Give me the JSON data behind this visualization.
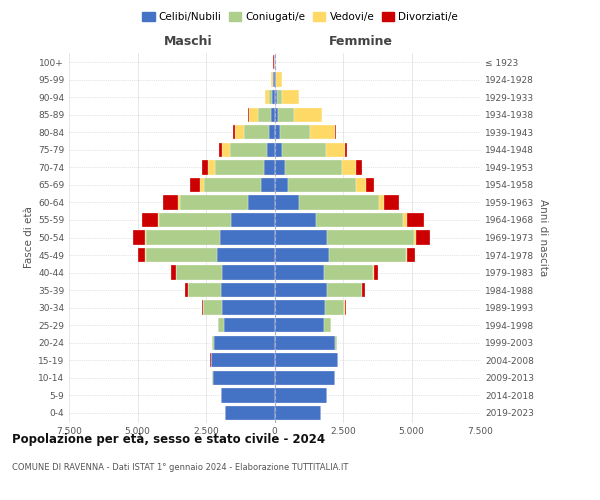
{
  "age_groups": [
    "0-4",
    "5-9",
    "10-14",
    "15-19",
    "20-24",
    "25-29",
    "30-34",
    "35-39",
    "40-44",
    "45-49",
    "50-54",
    "55-59",
    "60-64",
    "65-69",
    "70-74",
    "75-79",
    "80-84",
    "85-89",
    "90-94",
    "95-99",
    "100+"
  ],
  "birth_years": [
    "2019-2023",
    "2014-2018",
    "2009-2013",
    "2004-2008",
    "1999-2003",
    "1994-1998",
    "1989-1993",
    "1984-1988",
    "1979-1983",
    "1974-1978",
    "1969-1973",
    "1964-1968",
    "1959-1963",
    "1954-1958",
    "1949-1953",
    "1944-1948",
    "1939-1943",
    "1934-1938",
    "1929-1933",
    "1924-1928",
    "≤ 1923"
  ],
  "maschi_celibi": [
    1800,
    1950,
    2250,
    2300,
    2200,
    1850,
    1900,
    1950,
    1900,
    2100,
    2000,
    1600,
    950,
    480,
    380,
    280,
    200,
    120,
    80,
    40,
    20
  ],
  "maschi_coniugati": [
    5,
    10,
    20,
    30,
    80,
    200,
    700,
    1200,
    1700,
    2600,
    2700,
    2600,
    2500,
    2100,
    1800,
    1350,
    900,
    500,
    120,
    30,
    10
  ],
  "maschi_vedovi": [
    5,
    5,
    5,
    5,
    5,
    5,
    5,
    5,
    10,
    20,
    30,
    50,
    80,
    150,
    250,
    300,
    350,
    300,
    150,
    50,
    5
  ],
  "maschi_divorziati": [
    2,
    2,
    5,
    5,
    10,
    20,
    50,
    100,
    150,
    280,
    450,
    600,
    550,
    350,
    200,
    80,
    50,
    30,
    10,
    5,
    2
  ],
  "femmine_celibi": [
    1700,
    1900,
    2200,
    2300,
    2200,
    1800,
    1850,
    1900,
    1800,
    2000,
    1900,
    1500,
    900,
    480,
    380,
    280,
    200,
    120,
    80,
    40,
    20
  ],
  "femmine_coniugati": [
    5,
    5,
    10,
    20,
    80,
    250,
    700,
    1300,
    1800,
    2800,
    3200,
    3200,
    2900,
    2500,
    2100,
    1600,
    1100,
    600,
    200,
    20,
    5
  ],
  "femmine_vedovi": [
    2,
    2,
    5,
    5,
    5,
    5,
    5,
    10,
    20,
    40,
    80,
    120,
    200,
    350,
    500,
    700,
    900,
    1000,
    600,
    200,
    30
  ],
  "femmine_divorziati": [
    2,
    2,
    5,
    5,
    10,
    20,
    50,
    100,
    150,
    300,
    500,
    650,
    550,
    300,
    200,
    80,
    50,
    30,
    10,
    5,
    2
  ],
  "colors": {
    "celibi": "#4472C4",
    "coniugati": "#AECF8B",
    "vedovi": "#FFD966",
    "divorziati": "#CC0000"
  },
  "xlim": 7500,
  "title": "Popolazione per età, sesso e stato civile - 2024",
  "subtitle": "COMUNE DI RAVENNA - Dati ISTAT 1° gennaio 2024 - Elaborazione TUTTITALIA.IT",
  "ylabel_left": "Fasce di età",
  "ylabel_right": "Anni di nascita",
  "header_maschi": "Maschi",
  "header_femmine": "Femmine"
}
